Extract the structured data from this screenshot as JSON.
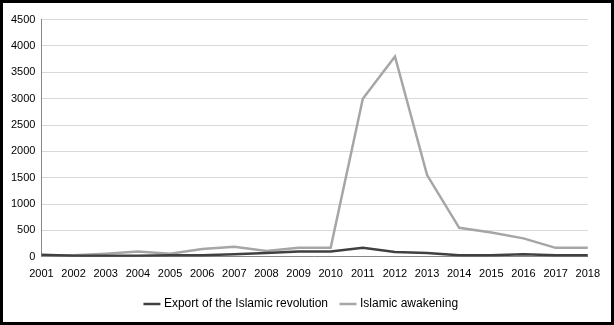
{
  "chart_data": {
    "type": "line",
    "categories": [
      "2001",
      "2002",
      "2003",
      "2004",
      "2005",
      "2006",
      "2007",
      "2008",
      "2009",
      "2010",
      "2011",
      "2012",
      "2013",
      "2014",
      "2015",
      "2016",
      "2017",
      "2018"
    ],
    "series": [
      {
        "name": "Export of the Islamic revolution",
        "color": "#404040",
        "line_style": "solid",
        "values": [
          40,
          20,
          20,
          20,
          30,
          30,
          50,
          70,
          100,
          100,
          170,
          90,
          70,
          30,
          30,
          50,
          30,
          30
        ]
      },
      {
        "name": "Islamic awakening",
        "color": "#a6a6a6",
        "line_style": "solid",
        "values": [
          30,
          30,
          60,
          100,
          60,
          150,
          190,
          110,
          170,
          170,
          3000,
          3800,
          1550,
          550,
          460,
          350,
          170,
          170
        ]
      }
    ],
    "ylim": [
      0,
      4500
    ],
    "yticks": [
      0,
      500,
      1000,
      1500,
      2000,
      2500,
      3000,
      3500,
      4000,
      4500
    ],
    "grid": true,
    "legend": "bottom",
    "marker": "none"
  }
}
